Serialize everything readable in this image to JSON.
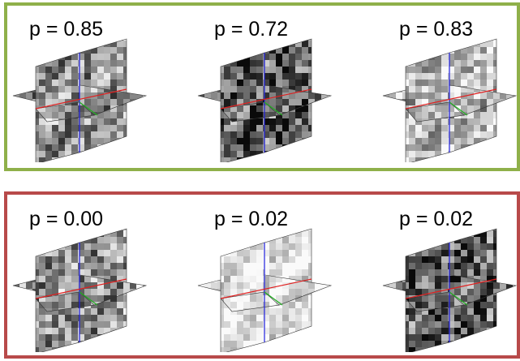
{
  "groups": [
    {
      "id": "top",
      "border_color": "#8fb04a",
      "panels": [
        {
          "label": "p = 0.85",
          "style": "gray"
        },
        {
          "label": "p = 0.72",
          "style": "dark"
        },
        {
          "label": "p = 0.83",
          "style": "light"
        }
      ]
    },
    {
      "id": "bottom",
      "border_color": "#b84a4a",
      "panels": [
        {
          "label": "p = 0.00",
          "style": "gray"
        },
        {
          "label": "p = 0.02",
          "style": "white"
        },
        {
          "label": "p = 0.02",
          "style": "dark"
        }
      ]
    }
  ],
  "axis_colors": {
    "x": "#e02020",
    "y": "#2020e0",
    "z": "#20b020"
  }
}
